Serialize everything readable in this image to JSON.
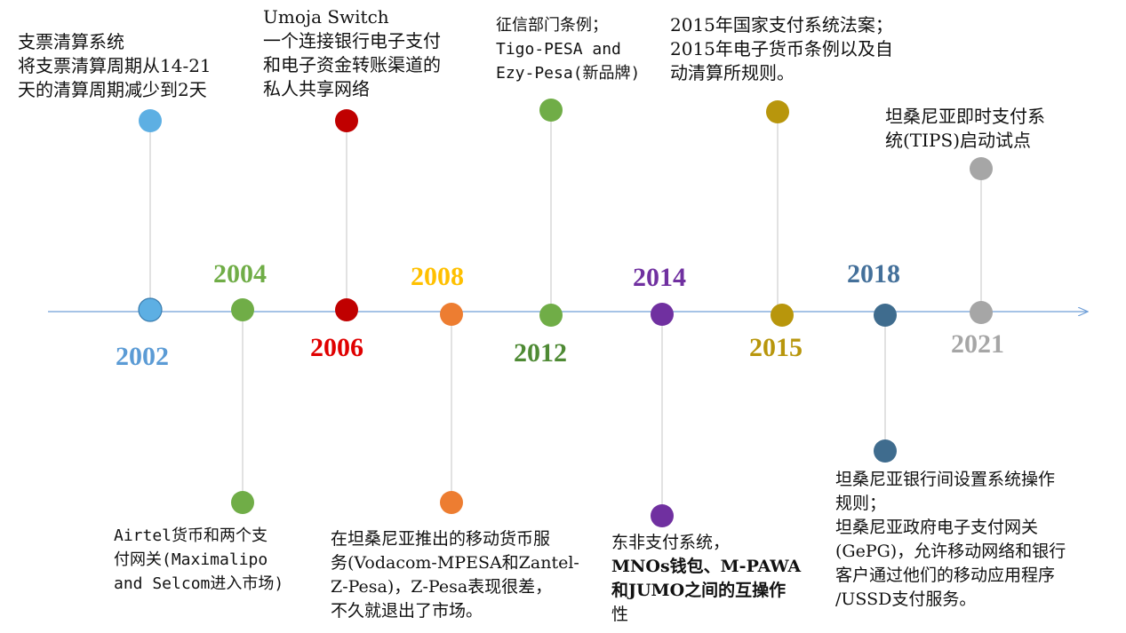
{
  "colors": {
    "axis": "#6f9fd8",
    "stem": "#d9d9d9",
    "y2002": "#5dafe3",
    "y2004": "#70ad47",
    "y2006": "#c00000",
    "y2008": "#ed7d31",
    "y2012": "#70ad47",
    "y2014": "#7030a0",
    "y2015": "#b8960c",
    "y2018": "#3f6c8e",
    "y2021": "#a6a6a6",
    "label2002": "#5b9bd5",
    "label2004": "#70ad47",
    "label2006": "#e00000",
    "label2008": "#ffc000",
    "label2012": "#4e8a34",
    "label2014": "#7030a0",
    "label2015": "#b8960c",
    "label2018": "#44709a",
    "label2021": "#a6a6a6"
  },
  "years": {
    "y2002": "2002",
    "y2004": "2004",
    "y2006": "2006",
    "y2008": "2008",
    "y2012": "2012",
    "y2014": "2014",
    "y2015": "2015",
    "y2018": "2018",
    "y2021": "2021"
  },
  "events": {
    "e2002": {
      "l1": "支票清算系统",
      "l2": "将支票清算周期从14-21",
      "l3": "天的清算周期减少到2天"
    },
    "e2004": {
      "l1": "Airtel货币和两个支",
      "l2": "付网关(Maximalipo",
      "l3": "and Selcom进入市场)"
    },
    "e2006": {
      "l1": "Umoja Switch",
      "l2": "一个连接银行电子支付",
      "l3": "和电子资金转账渠道的",
      "l4": "私人共享网络"
    },
    "e2008": {
      "l1": "在坦桑尼亚推出的移动货币服",
      "l2": "务(Vodacom-MPESA和Zantel-",
      "l3": "Z-Pesa)，Z-Pesa表现很差，",
      "l4": "不久就退出了市场。"
    },
    "e2012": {
      "l1": "征信部门条例；",
      "l2": "Tigo-PESA and",
      "l3": "Ezy-Pesa(新品牌)"
    },
    "e2014": {
      "l1": "东非支付系统，",
      "l2": "MNOs钱包、M-PAWA",
      "l3": "和JUMO之间的互操作",
      "l4": "性"
    },
    "e2015": {
      "l1": "2015年国家支付系统法案；",
      "l2": "2015年电子货币条例以及自",
      "l3": "动清算所规则。"
    },
    "e2018": {
      "l1": "坦桑尼亚银行间设置系统操作",
      "l2": "规则；",
      "l3": "坦桑尼亚政府电子支付网关",
      "l4": "(GePG)，允许移动网络和银行",
      "l5": "客户通过他们的移动应用程序",
      "l6": "/USSD支付服务。"
    },
    "e2021": {
      "l1": "坦桑尼亚即时支付系",
      "l2": "统(TIPS)启动试点"
    }
  }
}
